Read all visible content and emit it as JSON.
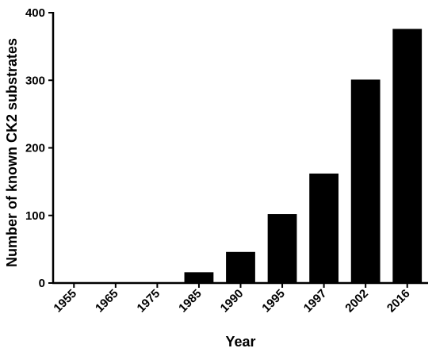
{
  "chart_data": {
    "type": "bar",
    "title": "",
    "xlabel": "Year",
    "ylabel": "Number of known CK2 substrates",
    "categories": [
      "1955",
      "1965",
      "1975",
      "1985",
      "1990",
      "1995",
      "1997",
      "2002",
      "2016"
    ],
    "values": [
      0,
      0,
      0,
      16,
      46,
      102,
      162,
      301,
      376
    ],
    "ylim": [
      0,
      400
    ],
    "yticks": [
      0,
      100,
      200,
      300,
      400
    ],
    "grid": false,
    "legend": "none",
    "bar_color": "#000000"
  }
}
